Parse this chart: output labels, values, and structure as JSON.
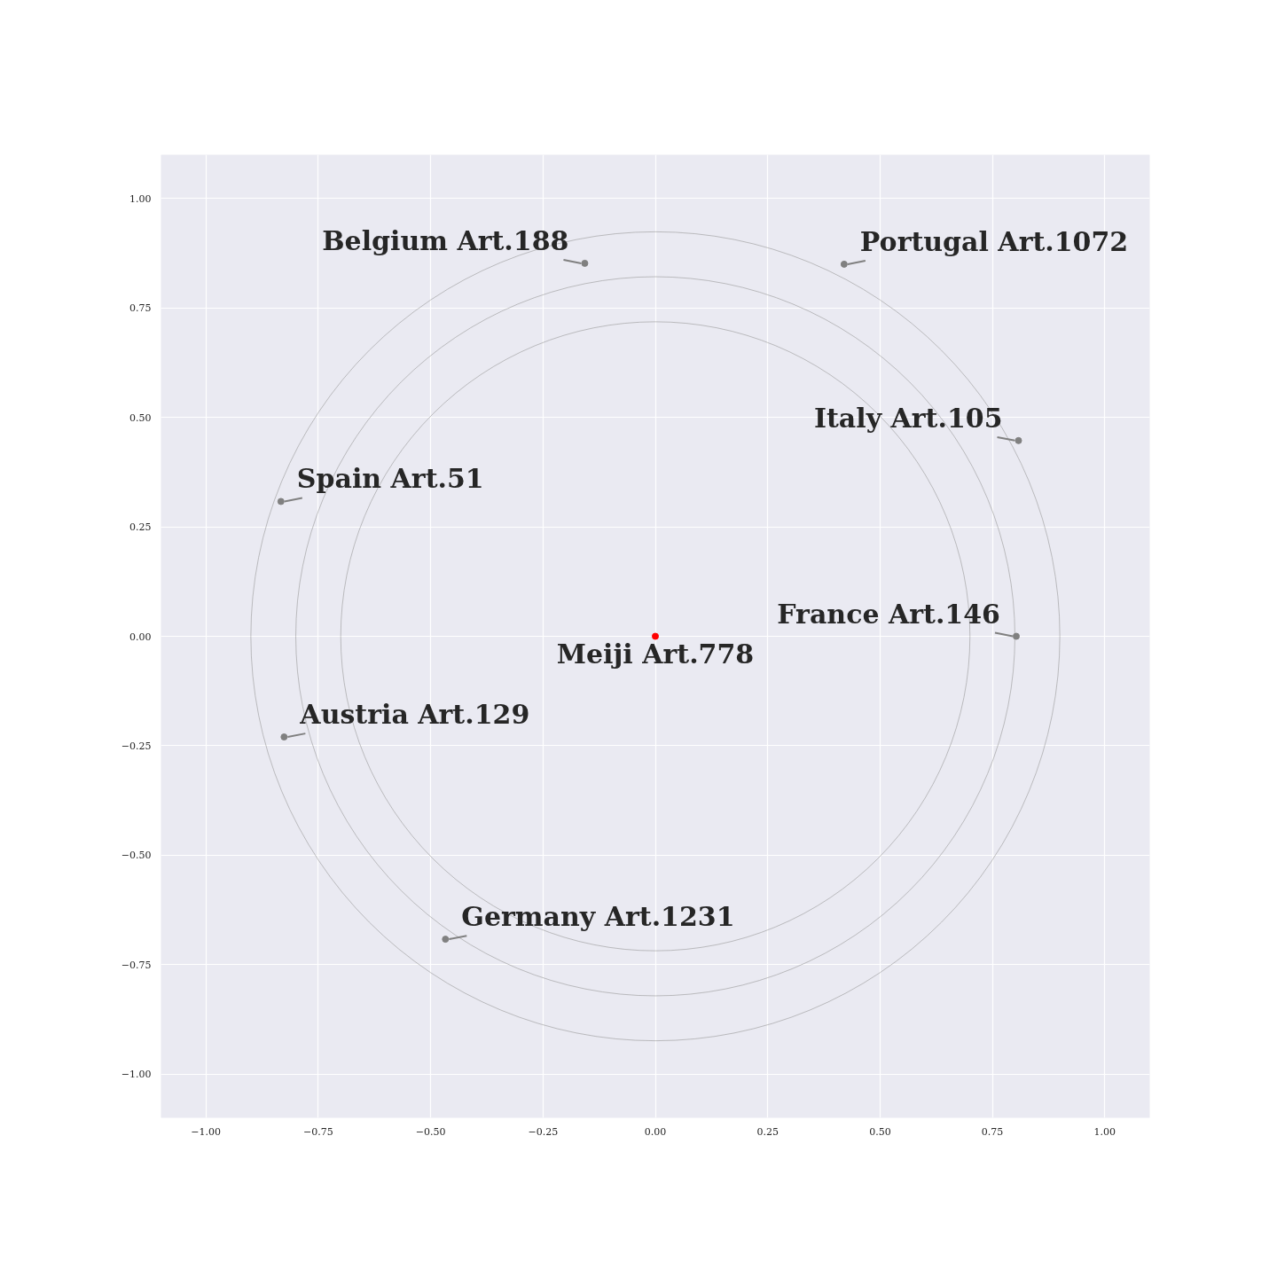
{
  "chart_data": {
    "type": "scatter",
    "grid": true,
    "marker": "circle",
    "xlim": [
      -1.1,
      1.1
    ],
    "ylim": [
      -1.1,
      1.1
    ],
    "xticks": [
      {
        "value": -1.0,
        "label": "−1.00"
      },
      {
        "value": -0.75,
        "label": "−0.75"
      },
      {
        "value": -0.5,
        "label": "−0.50"
      },
      {
        "value": -0.25,
        "label": "−0.25"
      },
      {
        "value": 0,
        "label": "0.00"
      },
      {
        "value": 0.25,
        "label": "0.25"
      },
      {
        "value": 0.5,
        "label": "0.50"
      },
      {
        "value": 0.75,
        "label": "0.75"
      },
      {
        "value": 1.0,
        "label": "1.00"
      }
    ],
    "yticks": [
      {
        "value": -1.0,
        "label": "−1.00"
      },
      {
        "value": -0.75,
        "label": "−0.75"
      },
      {
        "value": -0.5,
        "label": "−0.50"
      },
      {
        "value": -0.25,
        "label": "−0.25"
      },
      {
        "value": 0,
        "label": "0.00"
      },
      {
        "value": 0.25,
        "label": "0.25"
      },
      {
        "value": 0.5,
        "label": "0.50"
      },
      {
        "value": 0.75,
        "label": "0.75"
      },
      {
        "value": 1.0,
        "label": "1.00"
      }
    ],
    "series": [
      {
        "x": [
          -0.157,
          0.42,
          0.808,
          -0.833,
          0.803,
          0,
          -0.826,
          -0.467
        ],
        "values": [
          0.852,
          0.85,
          0.447,
          0.308,
          0.0,
          0.0,
          -0.23,
          -0.692
        ],
        "colors": [
          "#808080",
          "#808080",
          "#808080",
          "#808080",
          "#808080",
          "#ff0000",
          "#808080",
          "#808080"
        ]
      }
    ],
    "annotations": [
      {
        "text": "Belgium Art.188",
        "x": -0.157,
        "y": 0.852
      },
      {
        "text": "Portugal Art.1072",
        "x": 0.42,
        "y": 0.85
      },
      {
        "text": "Italy Art.105",
        "x": 0.808,
        "y": 0.447
      },
      {
        "text": "Spain Art.51",
        "x": -0.833,
        "y": 0.308
      },
      {
        "text": "France Art.146",
        "x": 0.803,
        "y": 0.0
      },
      {
        "text": "Meiji Art.778",
        "x": 0,
        "y": 0.0
      },
      {
        "text": "Austria Art.129",
        "x": -0.826,
        "y": -0.23
      },
      {
        "text": "Germany Art.1231",
        "x": -0.467,
        "y": -0.692
      }
    ]
  }
}
